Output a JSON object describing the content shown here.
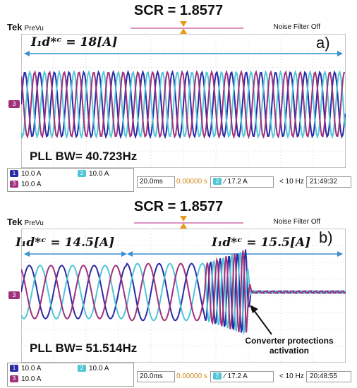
{
  "panel_a": {
    "title": "SCR = 1.8577",
    "scope_brand": "Tek",
    "scope_mode": "PreVu",
    "noise_filter": "Noise Filter Off",
    "channel_marker": "3",
    "current_label": "I₁d*ᶜ = 18[A]",
    "panel_letter": "a)",
    "pll_label": "PLL BW= 40.723Hz",
    "status": {
      "ch1_badge": "1",
      "ch1_scale": "10.0 A",
      "ch2_badge": "2",
      "ch2_scale": "10.0 A",
      "ch3_badge": "3",
      "ch3_scale": "10.0 A",
      "timebase": "20.0ms",
      "delay": "0.00000 s",
      "trig_badge": "2",
      "trigger": "∕ 17.2 A",
      "freq": "< 10 Hz",
      "clock": "21:49:32"
    }
  },
  "panel_b": {
    "title": "SCR = 1.8577",
    "scope_brand": "Tek",
    "scope_mode": "PreVu",
    "noise_filter": "Noise Filter Off",
    "channel_marker": "3",
    "current_label_1": "I₁d*ᶜ = 14.5[A]",
    "current_label_2": "I₁d*ᶜ = 15.5[A]",
    "panel_letter": "b)",
    "pll_label": "PLL BW= 51.514Hz",
    "annotation": "Converter protections activation",
    "status": {
      "ch1_badge": "1",
      "ch1_scale": "10.0 A",
      "ch2_badge": "2",
      "ch2_scale": "10.0 A",
      "ch3_badge": "3",
      "ch3_scale": "10.0 A",
      "timebase": "20.0ms",
      "delay": "0.00000 s",
      "trig_badge": "2",
      "trigger": "∕ 17.2 A",
      "freq": "< 10 Hz",
      "clock": "20:48:55"
    }
  },
  "chart_data": [
    {
      "type": "line",
      "title": "SCR = 1.8577",
      "x_unit": "ms",
      "time_per_div": 20,
      "divisions": 10,
      "amp_per_div_A": 10,
      "series": [
        {
          "color": "#2a2aa8",
          "phase_deg": 0
        },
        {
          "color": "#4fc6d6",
          "phase_deg": -120
        },
        {
          "color": "#a0307a",
          "phase_deg": 120
        }
      ],
      "frequency_hz": 50,
      "amplitude_A": 18
    },
    {
      "type": "line",
      "title": "SCR = 1.8577",
      "x_unit": "ms",
      "time_per_div": 20,
      "divisions": 10,
      "amp_per_div_A": 10,
      "series": [
        {
          "color": "#2a2aa8",
          "phase_deg": 0
        },
        {
          "color": "#4fc6d6",
          "phase_deg": -120
        },
        {
          "color": "#a0307a",
          "phase_deg": 120
        }
      ],
      "frequency_hz": 50,
      "segments": [
        {
          "amplitude_A": 14.5
        },
        {
          "amplitude_A": 15.5
        },
        {
          "event": "Converter protections activation",
          "amplitude_A": 0
        }
      ]
    }
  ]
}
